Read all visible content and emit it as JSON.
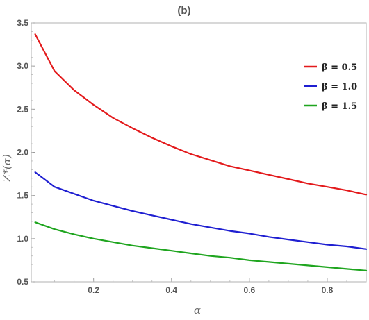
{
  "chart_data": {
    "type": "line",
    "title": "(b)",
    "xlabel": "α",
    "ylabel": "Z*(α)",
    "xlim": [
      0.04,
      0.9
    ],
    "ylim": [
      0.5,
      3.5
    ],
    "xticks": [
      0.2,
      0.4,
      0.6,
      0.8
    ],
    "xtick_labels": [
      "0.2",
      "0.4",
      "0.6",
      "0.8"
    ],
    "yticks": [
      0.5,
      1.0,
      1.5,
      2.0,
      2.5,
      3.0,
      3.5
    ],
    "ytick_labels": [
      "0.5",
      "1.0",
      "1.5",
      "2.0",
      "2.5",
      "3.0",
      "3.5"
    ],
    "legend_position": "top-right",
    "grid": false,
    "x": [
      0.05,
      0.1,
      0.15,
      0.2,
      0.25,
      0.3,
      0.35,
      0.4,
      0.45,
      0.5,
      0.55,
      0.6,
      0.65,
      0.7,
      0.75,
      0.8,
      0.85,
      0.9
    ],
    "series": [
      {
        "name": "β = 0.5",
        "color": "#e31a1c",
        "values": [
          3.37,
          2.94,
          2.72,
          2.55,
          2.4,
          2.28,
          2.17,
          2.07,
          1.98,
          1.91,
          1.84,
          1.79,
          1.74,
          1.69,
          1.64,
          1.6,
          1.56,
          1.51
        ]
      },
      {
        "name": "β = 1.0",
        "color": "#1f1fd1",
        "values": [
          1.77,
          1.6,
          1.52,
          1.44,
          1.38,
          1.32,
          1.27,
          1.22,
          1.17,
          1.13,
          1.09,
          1.06,
          1.02,
          0.99,
          0.96,
          0.93,
          0.91,
          0.88
        ]
      },
      {
        "name": "β = 1.5",
        "color": "#1fa51f",
        "values": [
          1.19,
          1.11,
          1.05,
          1.0,
          0.96,
          0.92,
          0.89,
          0.86,
          0.83,
          0.8,
          0.78,
          0.75,
          0.73,
          0.71,
          0.69,
          0.67,
          0.65,
          0.63
        ]
      }
    ]
  }
}
